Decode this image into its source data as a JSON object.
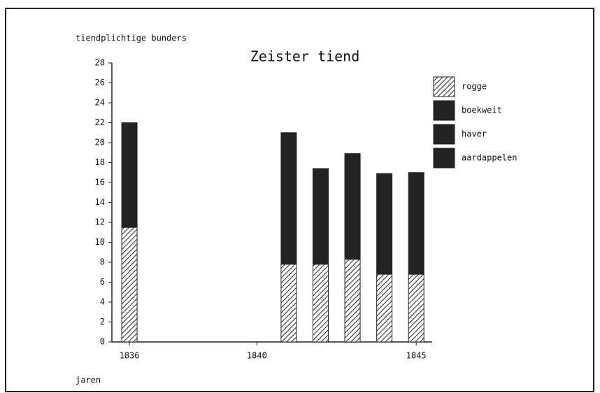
{
  "chart_data": {
    "type": "stacked_bar",
    "title": "Zeister tiend",
    "y_label": "tiendplichtige bunders",
    "x_label": "jaren",
    "x": [
      1836,
      1841,
      1842,
      1843,
      1844,
      1845
    ],
    "series": [
      {
        "name": "rogge",
        "color": "#222222",
        "pattern": "hatch",
        "values": [
          11.5,
          7.8,
          7.8,
          8.3,
          6.8,
          6.8
        ]
      },
      {
        "name": "boekweit",
        "color": "#222222",
        "pattern": "solid",
        "values": [
          10.5,
          13.2,
          9.6,
          10.6,
          10.1,
          10.2
        ]
      },
      {
        "name": "haver",
        "color": "#222222",
        "pattern": "solid",
        "values": [
          0,
          0,
          0,
          0,
          0,
          0
        ]
      },
      {
        "name": "aardappelen",
        "color": "#222222",
        "pattern": "solid",
        "values": [
          0,
          0,
          0,
          0,
          0,
          0
        ]
      }
    ],
    "xlim": [
      1835.45,
      1845.5
    ],
    "xticks": [
      1836,
      1840,
      1845
    ],
    "ylim": [
      0,
      28
    ],
    "yticks": [
      0,
      2,
      4,
      6,
      8,
      10,
      12,
      14,
      16,
      18,
      20,
      22,
      24,
      26,
      28
    ],
    "legend": "top-right"
  }
}
